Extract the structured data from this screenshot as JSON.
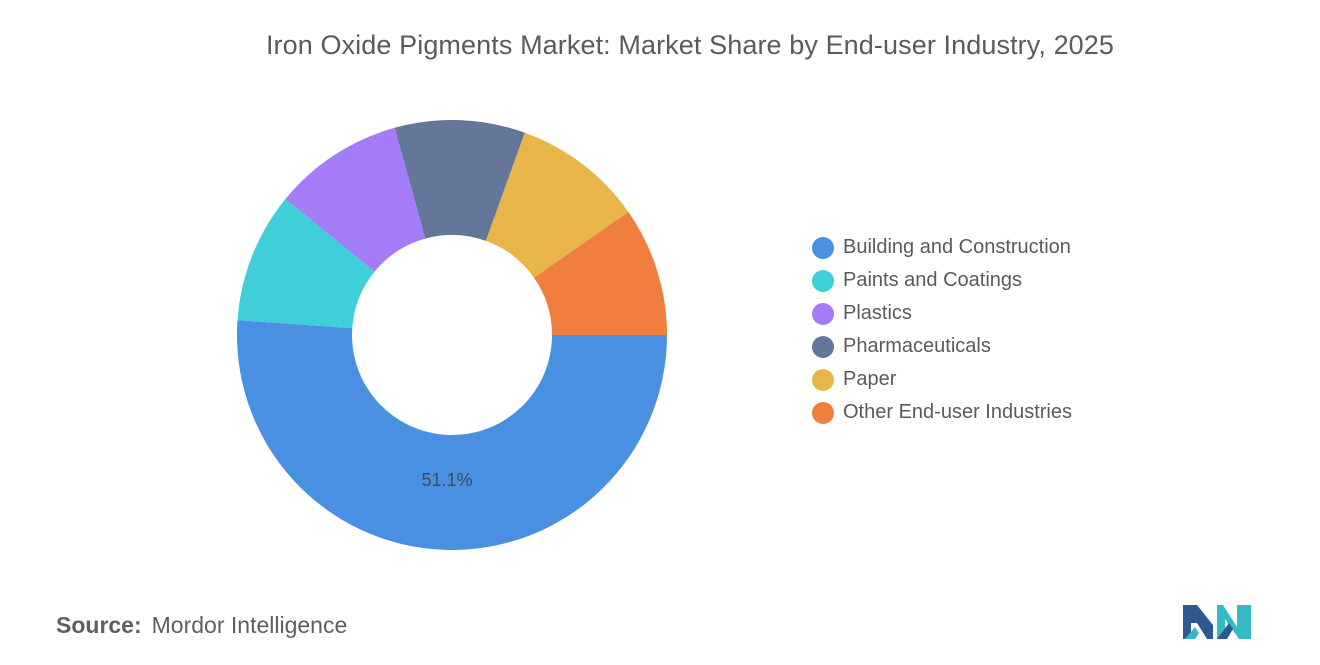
{
  "chart_data": {
    "type": "pie",
    "donut": true,
    "title": "Iron Oxide Pigments Market: Market Share by End-user Industry, 2025",
    "categories": [
      "Building and Construction",
      "Paints and Coatings",
      "Plastics",
      "Pharmaceuticals",
      "Paper",
      "Other End-user Industries"
    ],
    "values": [
      51.1,
      9.8,
      9.8,
      9.8,
      9.8,
      9.7
    ],
    "colors": [
      "#4a90e2",
      "#3ecfd9",
      "#a57cf7",
      "#64779a",
      "#e8b54a",
      "#f07f3f"
    ],
    "data_labels": [
      "51.1%",
      "",
      "",
      "",
      "",
      ""
    ],
    "legend_position": "right"
  },
  "source": {
    "key": "Source:",
    "value": "Mordor Intelligence"
  },
  "logo": {
    "icon": "mordor-intelligence-logo",
    "colors": [
      "#2c5a8c",
      "#34b9c6"
    ]
  }
}
